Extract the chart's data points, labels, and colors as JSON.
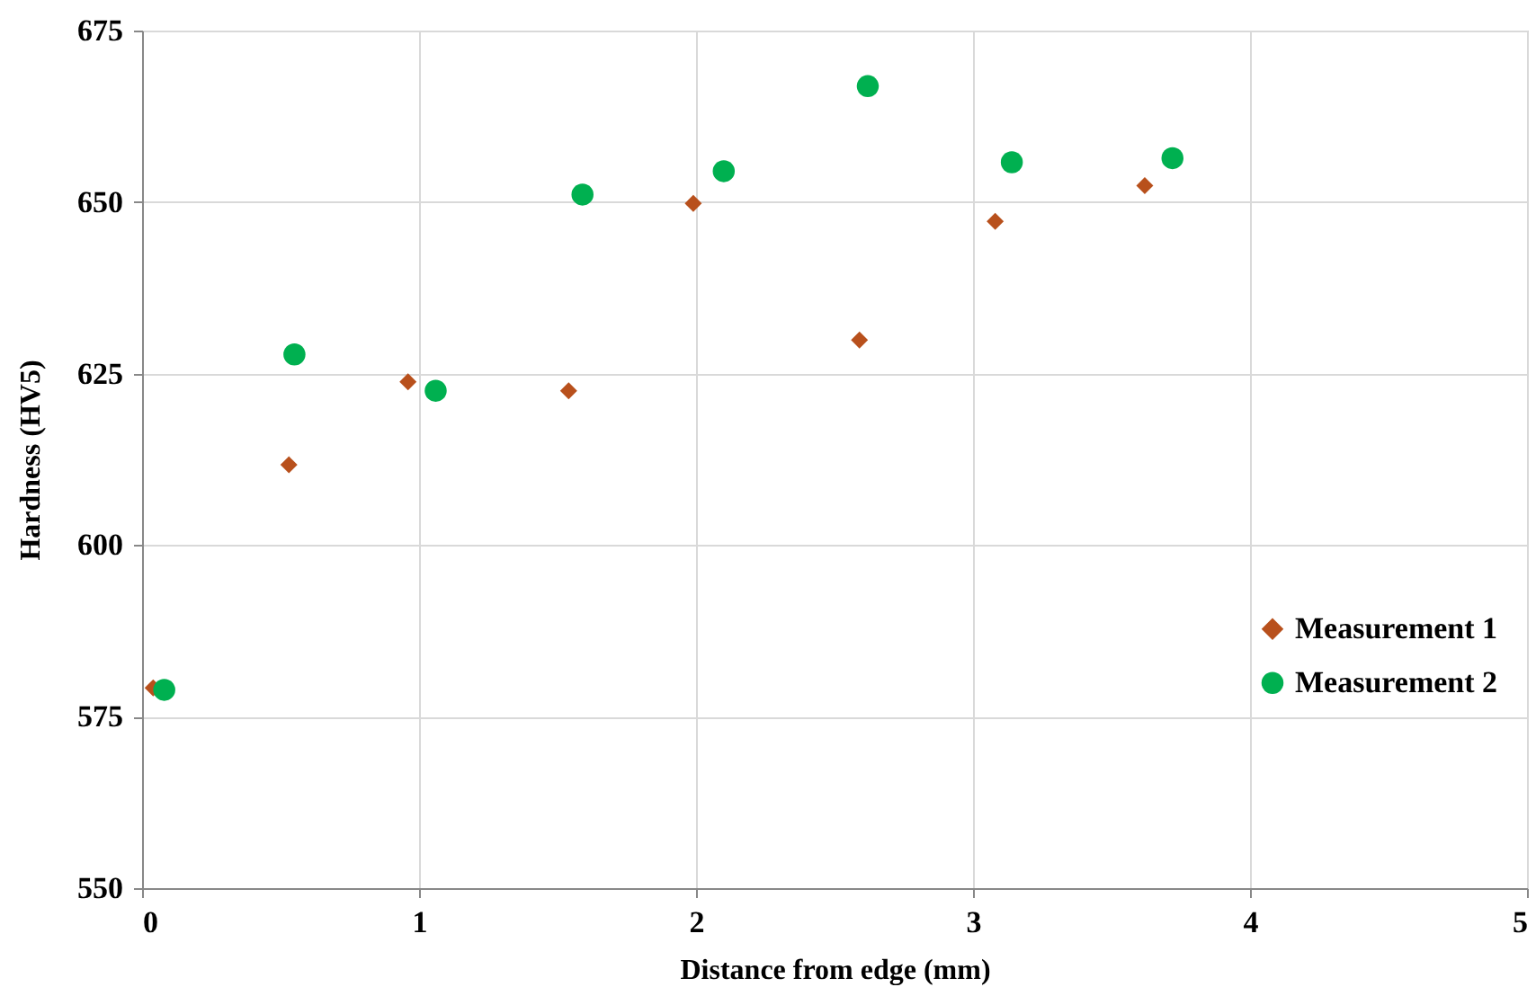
{
  "chart_data": {
    "type": "scatter",
    "xlabel": "Distance from edge (mm)",
    "ylabel": "Hardness (HV5)",
    "xlim": [
      0,
      5
    ],
    "xticks": [
      0,
      1,
      2,
      3,
      4,
      5
    ],
    "ylim": [
      550,
      675
    ],
    "yticks": [
      550,
      575,
      600,
      625,
      650,
      675
    ],
    "grid": true,
    "legend": "right",
    "series": [
      {
        "name": "Measurement 1",
        "color": "#b8501c",
        "marker": "diamond",
        "x": [
          0.04,
          0.53,
          0.96,
          1.54,
          1.99,
          2.59,
          3.08,
          3.62
        ],
        "values": [
          579.2,
          611.7,
          623.8,
          622.5,
          649.8,
          629.9,
          647.2,
          652.4
        ]
      },
      {
        "name": "Measurement 2",
        "color": "#00b050",
        "marker": "circle",
        "x": [
          0.08,
          0.55,
          1.06,
          1.59,
          2.1,
          2.62,
          3.14,
          3.72
        ],
        "values": [
          578.9,
          627.8,
          622.5,
          651.1,
          654.5,
          666.9,
          655.8,
          656.4
        ]
      }
    ]
  }
}
